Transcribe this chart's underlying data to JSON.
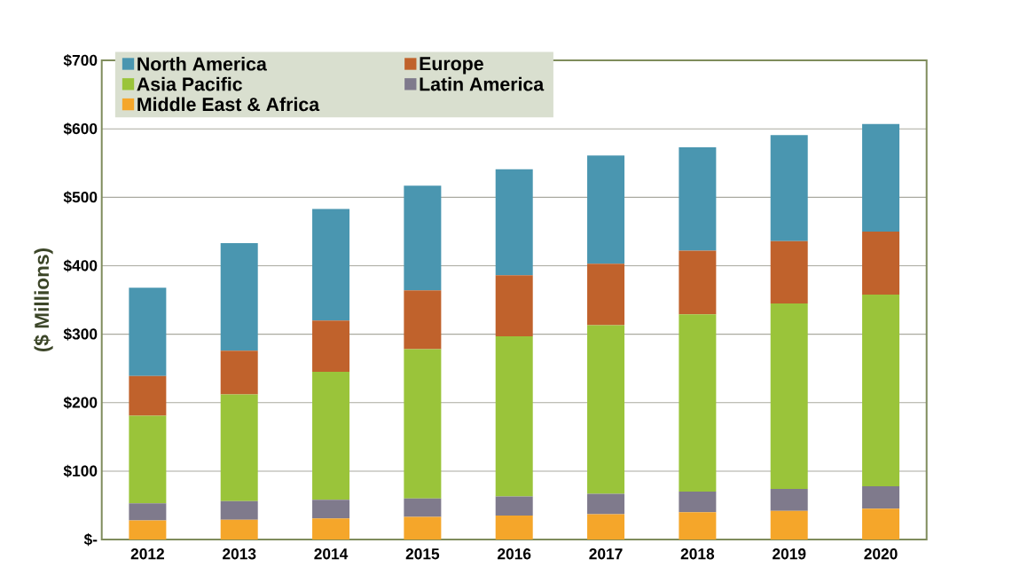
{
  "chart_data": {
    "type": "bar",
    "stacked": true,
    "ylabel": "($ Millions)",
    "categories": [
      "2012",
      "2013",
      "2014",
      "2015",
      "2016",
      "2017",
      "2018",
      "2019",
      "2020"
    ],
    "series": [
      {
        "name": "Middle East & Africa",
        "color": "#f5a62a",
        "values": [
          28,
          29,
          31,
          33,
          35,
          37,
          40,
          42,
          45
        ]
      },
      {
        "name": "Latin America",
        "color": "#7f7a8c",
        "values": [
          25,
          27,
          27,
          27,
          28,
          30,
          30,
          32,
          33
        ]
      },
      {
        "name": "Asia Pacific",
        "color": "#9ac43a",
        "values": [
          128,
          156,
          187,
          218,
          234,
          246,
          259,
          271,
          280
        ]
      },
      {
        "name": "Europe",
        "color": "#c0622c",
        "values": [
          58,
          64,
          75,
          86,
          89,
          90,
          93,
          91,
          92
        ]
      },
      {
        "name": "North America",
        "color": "#4a96b0",
        "values": [
          129,
          157,
          163,
          153,
          155,
          158,
          151,
          155,
          157
        ]
      }
    ],
    "ylim": [
      0,
      700
    ],
    "yticks": [
      {
        "value": 0,
        "label": "$-"
      },
      {
        "value": 100,
        "label": "$100"
      },
      {
        "value": 200,
        "label": "$200"
      },
      {
        "value": 300,
        "label": "$300"
      },
      {
        "value": 400,
        "label": "$400"
      },
      {
        "value": 500,
        "label": "$500"
      },
      {
        "value": 600,
        "label": "$600"
      },
      {
        "value": 700,
        "label": "$700"
      }
    ],
    "grid": "y",
    "legend": "top left"
  }
}
